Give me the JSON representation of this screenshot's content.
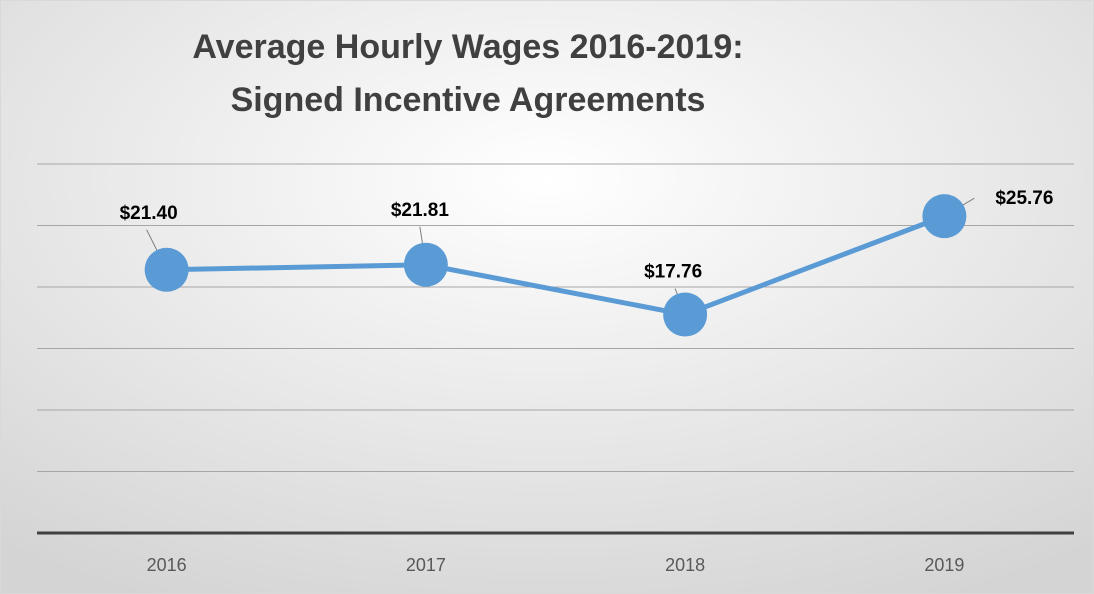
{
  "chart_data": {
    "type": "line",
    "title": [
      "Average Hourly Wages 2016-2019:",
      "Signed Incentive Agreements"
    ],
    "categories": [
      "2016",
      "2017",
      "2018",
      "2019"
    ],
    "series": [
      {
        "color": "#5b9bd5",
        "values": [
          21.4,
          21.81,
          17.76,
          25.76
        ],
        "value_labels": [
          "$21.40",
          "$21.81",
          "$17.76",
          "$25.76"
        ]
      }
    ],
    "ylim": [
      0,
      30
    ],
    "yticks": [
      0,
      5,
      10,
      15,
      20,
      25,
      30
    ],
    "grid": true
  }
}
